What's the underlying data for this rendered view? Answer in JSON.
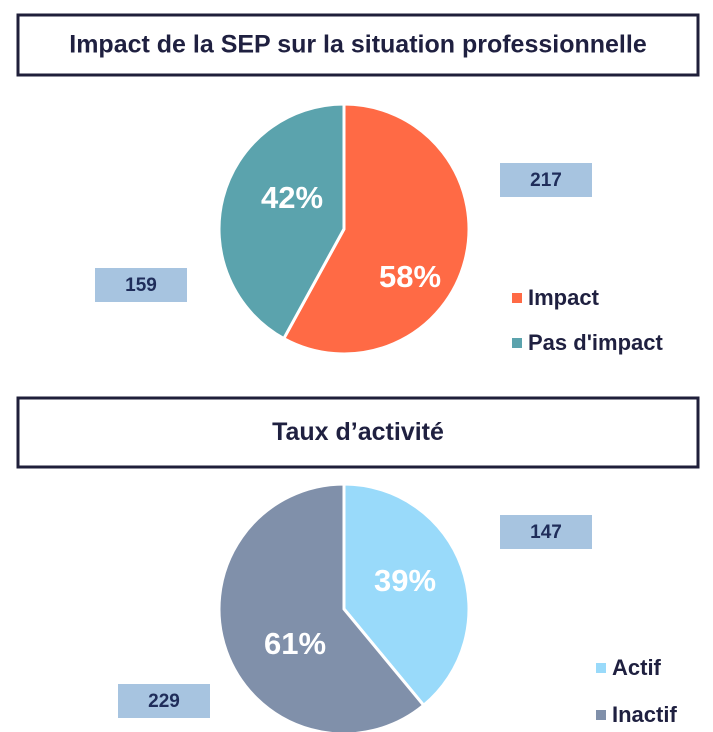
{
  "chart_data": [
    {
      "type": "pie",
      "title": "Impact de la SEP sur la situation professionnelle",
      "categories": [
        "Impact",
        "Pas d'impact"
      ],
      "values": [
        58,
        42
      ],
      "value_labels": [
        "58%",
        "42%"
      ],
      "counts": [
        217,
        159
      ],
      "colors": [
        "#ff6a45",
        "#5ba3ad"
      ]
    },
    {
      "type": "pie",
      "title": "Taux d’activité",
      "categories": [
        "Actif",
        "Inactif"
      ],
      "values": [
        39,
        61
      ],
      "value_labels": [
        "39%",
        "61%"
      ],
      "counts": [
        147,
        229
      ],
      "colors": [
        "#99dafa",
        "#8090aa"
      ]
    }
  ]
}
